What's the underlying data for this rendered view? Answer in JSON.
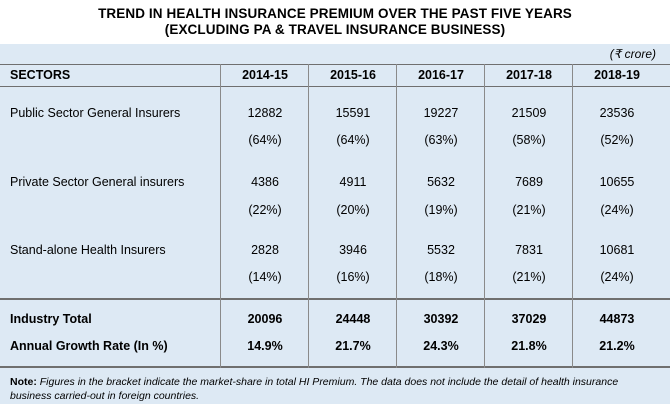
{
  "title_line1": "TREND IN HEALTH INSURANCE PREMIUM OVER THE PAST FIVE YEARS",
  "title_line2": "(EXCLUDING PA & TRAVEL INSURANCE BUSINESS)",
  "unit": "(₹ crore)",
  "header": {
    "sectors": "SECTORS",
    "years": [
      "2014-15",
      "2015-16",
      "2016-17",
      "2017-18",
      "2018-19"
    ]
  },
  "rows": [
    {
      "label": "Public Sector General Insurers",
      "values": [
        "12882",
        "15591",
        "19227",
        "21509",
        "23536"
      ],
      "shares": [
        "(64%)",
        "(64%)",
        "(63%)",
        "(58%)",
        "(52%)"
      ]
    },
    {
      "label": "Private Sector General insurers",
      "values": [
        "4386",
        "4911",
        "5632",
        "7689",
        "10655"
      ],
      "shares": [
        "(22%)",
        "(20%)",
        "(19%)",
        "(21%)",
        "(24%)"
      ]
    },
    {
      "label": "Stand-alone Health Insurers",
      "values": [
        "2828",
        "3946",
        "5532",
        "7831",
        "10681"
      ],
      "shares": [
        "(14%)",
        "(16%)",
        "(18%)",
        "(21%)",
        "(24%)"
      ]
    }
  ],
  "totals": {
    "label": "Industry Total",
    "values": [
      "20096",
      "24448",
      "30392",
      "37029",
      "44873"
    ]
  },
  "growth": {
    "label": "Annual Growth Rate (In %)",
    "values": [
      "14.9%",
      "21.7%",
      "24.3%",
      "21.8%",
      "21.2%"
    ]
  },
  "note": {
    "label": "Note:",
    "text": "Figures in the bracket indicate the market-share in total HI Premium. The data does not include the detail of health insurance business carried-out in foreign countries."
  }
}
